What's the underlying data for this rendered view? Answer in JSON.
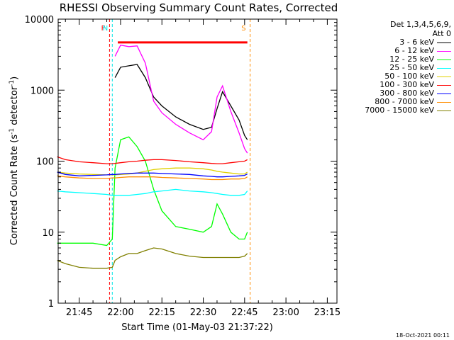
{
  "chart_data": {
    "type": "line",
    "title": "RHESSI Observing Summary Count Rates, Corrected",
    "xlabel": "Start Time (01-May-03 21:37:22)",
    "ylabel": "Corrected Count Rate (s",
    "ylabel_sup1": "-1",
    "ylabel_mid": " detector",
    "ylabel_sup2": "-1",
    "ylabel_end": ")",
    "yscale": "log",
    "ylim": [
      1,
      10000
    ],
    "xlim": [
      "21:37:22",
      "23:18:30"
    ],
    "xticks": [
      "21:45",
      "22:00",
      "22:15",
      "22:30",
      "22:45",
      "23:00",
      "23:15"
    ],
    "yticks": [
      "1",
      "10",
      "100",
      "1000",
      "10000"
    ],
    "legend_header": [
      "Det 1,3,4,5,6,9,",
      "Att 0"
    ],
    "legend_position": "right",
    "markers": [
      {
        "label": "F",
        "color": "#ff0000",
        "x": "21:56"
      },
      {
        "label": "N",
        "color": "#00e5e5",
        "x": "21:57"
      },
      {
        "label": "S",
        "color": "#ff8c00",
        "x": "22:47"
      }
    ],
    "flare_bar": {
      "color": "#ff0000",
      "x": [
        "21:59",
        "22:46"
      ],
      "y": 4700
    },
    "x": [
      "21:37",
      "21:40",
      "21:45",
      "21:50",
      "21:55",
      "21:57",
      "21:58",
      "22:00",
      "22:03",
      "22:06",
      "22:09",
      "22:12",
      "22:15",
      "22:20",
      "22:25",
      "22:30",
      "22:33",
      "22:35",
      "22:37",
      "22:40",
      "22:43",
      "22:45",
      "22:46"
    ],
    "series": [
      {
        "name": "3 - 6 keV",
        "color": "#000000",
        "values": [
          null,
          null,
          null,
          null,
          null,
          null,
          1500,
          2100,
          2200,
          2300,
          1500,
          800,
          600,
          420,
          330,
          280,
          300,
          550,
          950,
          600,
          380,
          230,
          200
        ]
      },
      {
        "name": "6 - 12 keV",
        "color": "#ff00ff",
        "values": [
          null,
          null,
          null,
          null,
          null,
          null,
          3000,
          4300,
          4100,
          4200,
          2400,
          700,
          480,
          330,
          250,
          200,
          260,
          800,
          1150,
          500,
          250,
          150,
          130
        ]
      },
      {
        "name": "12 - 25 keV",
        "color": "#00ff00",
        "values": [
          7,
          7,
          7,
          7,
          6.5,
          8,
          80,
          200,
          220,
          160,
          100,
          40,
          20,
          12,
          11,
          10,
          12,
          25,
          18,
          10,
          8,
          8,
          10
        ]
      },
      {
        "name": "25 - 50 keV",
        "color": "#00ffff",
        "values": [
          38,
          37,
          36,
          35,
          34,
          33,
          33,
          33,
          33,
          34,
          35,
          37,
          38,
          40,
          38,
          37,
          36,
          35,
          34,
          33,
          33,
          34,
          38
        ]
      },
      {
        "name": "50 - 100 keV",
        "color": "#e0d000",
        "values": [
          70,
          68,
          66,
          65,
          64,
          64,
          64,
          65,
          66,
          68,
          72,
          76,
          78,
          80,
          80,
          78,
          75,
          72,
          70,
          68,
          66,
          66,
          70
        ]
      },
      {
        "name": "100 - 300 keV",
        "color": "#ff0000",
        "values": [
          115,
          105,
          98,
          95,
          92,
          92,
          93,
          95,
          98,
          100,
          103,
          105,
          105,
          102,
          98,
          95,
          93,
          92,
          92,
          95,
          98,
          100,
          105
        ]
      },
      {
        "name": "300 - 800 keV",
        "color": "#0000ff",
        "values": [
          70,
          65,
          62,
          63,
          64,
          65,
          65,
          66,
          67,
          68,
          68,
          68,
          67,
          66,
          65,
          62,
          61,
          60,
          60,
          61,
          62,
          63,
          66
        ]
      },
      {
        "name": "800 - 7000 keV",
        "color": "#ff8c00",
        "values": [
          62,
          60,
          58,
          57,
          57,
          58,
          58,
          59,
          60,
          60,
          60,
          60,
          59,
          58,
          57,
          56,
          55,
          55,
          55,
          56,
          56,
          57,
          60
        ]
      },
      {
        "name": "7000 - 15000 keV",
        "color": "#808000",
        "values": [
          4,
          3.6,
          3.2,
          3.1,
          3.1,
          3.2,
          4,
          4.5,
          5,
          5,
          5.5,
          6,
          5.8,
          5,
          4.6,
          4.4,
          4.4,
          4.4,
          4.4,
          4.4,
          4.4,
          4.6,
          5
        ]
      }
    ]
  },
  "footer": {
    "date": "18-Oct-2021 00:11"
  }
}
